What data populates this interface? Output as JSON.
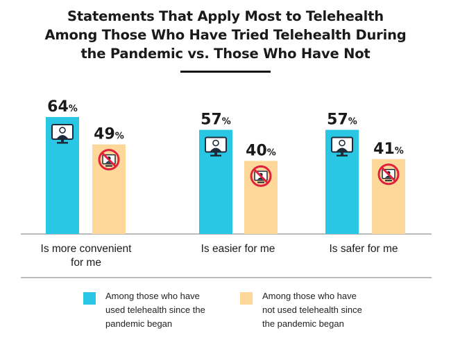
{
  "chart_data": {
    "type": "bar",
    "title": "Statements That Apply Most to Telehealth Among Those Who Have Tried Telehealth During the Pandemic vs. Those Who Have Not",
    "title_lines": [
      "Statements That Apply Most to Telehealth",
      "Among Those Who Have Tried Telehealth During",
      "the Pandemic vs. Those Who Have Not"
    ],
    "categories": [
      "Is more convenient for me",
      "Is easier for me",
      "Is safer for me"
    ],
    "category_label_lines": [
      [
        "Is more convenient",
        "for me"
      ],
      [
        "Is easier for me"
      ],
      [
        "Is safer for me"
      ]
    ],
    "series": [
      {
        "name": "Among those who have used telehealth since the pandemic began",
        "values": [
          64,
          57,
          57
        ],
        "color": "#29c7e3",
        "icon": "telehealth-used-icon"
      },
      {
        "name": "Among those who have not used telehealth since the pandemic began",
        "values": [
          49,
          40,
          41
        ],
        "color": "#fdd89a",
        "icon": "telehealth-not-used-icon"
      }
    ],
    "value_suffix": "%",
    "ylim": [
      0,
      100
    ],
    "grid": false,
    "legend_position": "bottom"
  },
  "legend": [
    {
      "lines": [
        "Among those who have",
        "used telehealth since the",
        "pandemic began"
      ],
      "color": "#29c7e3"
    },
    {
      "lines": [
        "Among those who have",
        "not used telehealth since",
        "the pandemic began"
      ],
      "color": "#fdd89a"
    }
  ]
}
